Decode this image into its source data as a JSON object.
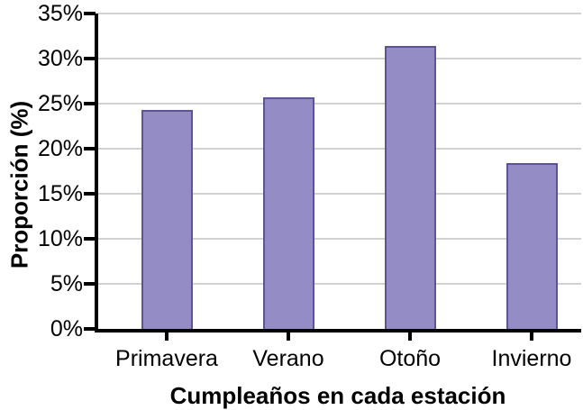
{
  "chart_data": {
    "type": "bar",
    "title": "",
    "categories": [
      "Primavera",
      "Verano",
      "Otoño",
      "Invierno"
    ],
    "values": [
      24.3,
      25.7,
      31.4,
      18.4
    ],
    "xlabel": "Cumpleaños en cada estación",
    "ylabel": "Proporción (%)",
    "ylim": [
      0,
      35
    ],
    "ytick_step": 5,
    "ytick_labels": [
      "0%",
      "5%",
      "10%",
      "15%",
      "20%",
      "25%",
      "30%",
      "35%"
    ],
    "grid": true,
    "legend": false,
    "colors": {
      "bar_fill": "#948CC4",
      "bar_border": "#5C5496",
      "gridline": "#D2D2D2",
      "axis": "#000000",
      "text": "#000000",
      "background": "#FFFFFF"
    }
  }
}
